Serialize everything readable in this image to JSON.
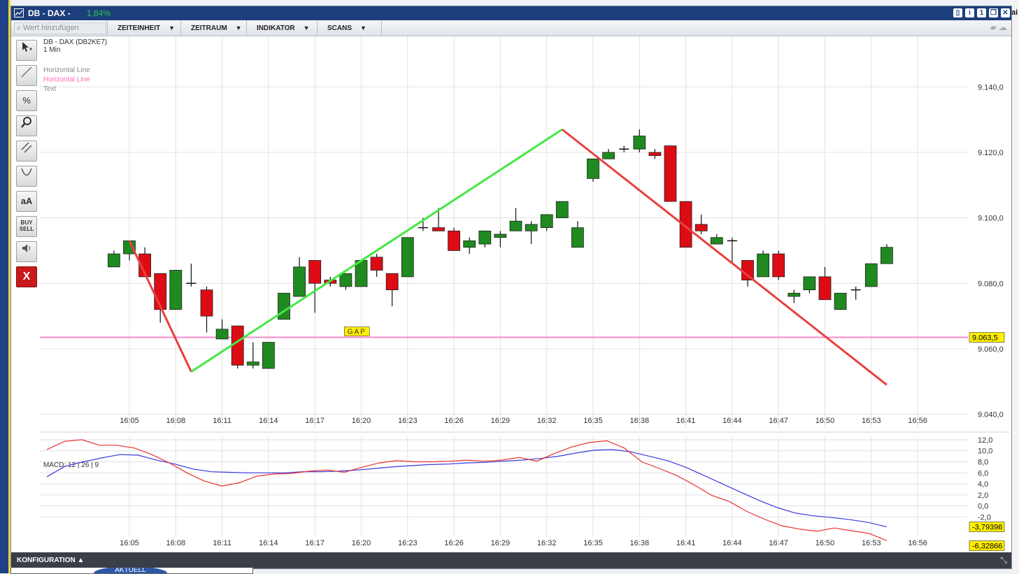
{
  "window": {
    "title": "DB - DAX -",
    "change": "1,84%"
  },
  "outer_right_text": "ai",
  "toolbar": {
    "search_placeholder": "Wert hinzufügen",
    "menus": [
      "ZEITEINHEIT",
      "ZEITRAUM",
      "INDIKATOR",
      "SCANS"
    ]
  },
  "legend": {
    "symbol": "DB - DAX (DB2KE7)",
    "interval": "1 Min",
    "items": [
      {
        "label": "Horizontal Line",
        "color": "#8a8a8a"
      },
      {
        "label": "Horizontal Line",
        "color": "#ff69b4"
      },
      {
        "label": "Text",
        "color": "#8a8a8a"
      }
    ]
  },
  "tools": [
    "cursor-icon",
    "line-icon",
    "percent-icon",
    "zoom-icon",
    "parallel-lines-icon",
    "curve-icon",
    "text-size-icon",
    "buy-sell-icon",
    "speaker-icon",
    "delete-icon"
  ],
  "tool_labels": {
    "text": "aA",
    "buysell_1": "BUY",
    "buysell_2": "SELL",
    "delete": "X",
    "percent": "%"
  },
  "bottom": {
    "label": "KONFIGURATION ▲"
  },
  "below_label": "AKTUELL",
  "chart_data": [
    {
      "type": "candlestick",
      "x": [
        "16:04",
        "16:05",
        "16:06",
        "16:07",
        "16:08",
        "16:09",
        "16:10",
        "16:11",
        "16:12",
        "16:13",
        "16:14",
        "16:15",
        "16:16",
        "16:17",
        "16:18",
        "16:19",
        "16:20",
        "16:21",
        "16:22",
        "16:23",
        "16:24",
        "16:25",
        "16:26",
        "16:27",
        "16:28",
        "16:29",
        "16:30",
        "16:31",
        "16:32",
        "16:33",
        "16:34",
        "16:35",
        "16:36",
        "16:37",
        "16:38",
        "16:39",
        "16:40",
        "16:41",
        "16:42",
        "16:43",
        "16:44",
        "16:45",
        "16:46",
        "16:47",
        "16:48",
        "16:49",
        "16:50",
        "16:51",
        "16:52",
        "16:53",
        "16:54"
      ],
      "series": [
        {
          "o": 9085,
          "h": 9090,
          "l": 9085,
          "c": 9089
        },
        {
          "o": 9089,
          "h": 9093,
          "l": 9087,
          "c": 9093
        },
        {
          "o": 9089,
          "h": 9091,
          "l": 9082,
          "c": 9082
        },
        {
          "o": 9083,
          "h": 9083,
          "l": 9068,
          "c": 9072
        },
        {
          "o": 9072,
          "h": 9084,
          "l": 9072,
          "c": 9084
        },
        {
          "o": 9080,
          "h": 9086,
          "l": 9079,
          "c": 9080
        },
        {
          "o": 9078,
          "h": 9079,
          "l": 9065,
          "c": 9070
        },
        {
          "o": 9063,
          "h": 9069,
          "l": 9063,
          "c": 9066
        },
        {
          "o": 9067,
          "h": 9067,
          "l": 9054,
          "c": 9055
        },
        {
          "o": 9055,
          "h": 9062,
          "l": 9054,
          "c": 9056
        },
        {
          "o": 9054,
          "h": 9062,
          "l": 9054,
          "c": 9062
        },
        {
          "o": 9069,
          "h": 9077,
          "l": 9069,
          "c": 9077
        },
        {
          "o": 9076,
          "h": 9088,
          "l": 9076,
          "c": 9085
        },
        {
          "o": 9087,
          "h": 9087,
          "l": 9071,
          "c": 9080
        },
        {
          "o": 9081,
          "h": 9082,
          "l": 9079,
          "c": 9080
        },
        {
          "o": 9079,
          "h": 9082,
          "l": 9078,
          "c": 9083
        },
        {
          "o": 9079,
          "h": 9087,
          "l": 9079,
          "c": 9087
        },
        {
          "o": 9088,
          "h": 9089,
          "l": 9082,
          "c": 9084
        },
        {
          "o": 9083,
          "h": 9083,
          "l": 9073,
          "c": 9078
        },
        {
          "o": 9082,
          "h": 9094,
          "l": 9082,
          "c": 9094
        },
        {
          "o": 9097,
          "h": 9100,
          "l": 9096,
          "c": 9097
        },
        {
          "o": 9097,
          "h": 9103,
          "l": 9096,
          "c": 9096
        },
        {
          "o": 9096,
          "h": 9097,
          "l": 9090,
          "c": 9090
        },
        {
          "o": 9091,
          "h": 9094,
          "l": 9089,
          "c": 9093
        },
        {
          "o": 9092,
          "h": 9096,
          "l": 9091,
          "c": 9096
        },
        {
          "o": 9094,
          "h": 9096,
          "l": 9091,
          "c": 9095
        },
        {
          "o": 9096,
          "h": 9103,
          "l": 9096,
          "c": 9099
        },
        {
          "o": 9096,
          "h": 9099,
          "l": 9092,
          "c": 9098
        },
        {
          "o": 9097,
          "h": 9101,
          "l": 9096,
          "c": 9101
        },
        {
          "o": 9100,
          "h": 9105,
          "l": 9100,
          "c": 9105
        },
        {
          "o": 9091,
          "h": 9099,
          "l": 9091,
          "c": 9097
        },
        {
          "o": 9112,
          "h": 9118,
          "l": 9111,
          "c": 9118
        },
        {
          "o": 9118,
          "h": 9121,
          "l": 9118,
          "c": 9120
        },
        {
          "o": 9121,
          "h": 9122,
          "l": 9120,
          "c": 9121
        },
        {
          "o": 9121,
          "h": 9127,
          "l": 9120,
          "c": 9125
        },
        {
          "o": 9120,
          "h": 9121,
          "l": 9118,
          "c": 9119
        },
        {
          "o": 9122,
          "h": 9122,
          "l": 9105,
          "c": 9105
        },
        {
          "o": 9105,
          "h": 9105,
          "l": 9091,
          "c": 9091
        },
        {
          "o": 9098,
          "h": 9101,
          "l": 9095,
          "c": 9096
        },
        {
          "o": 9092,
          "h": 9095,
          "l": 9093,
          "c": 9094
        },
        {
          "o": 9093,
          "h": 9094,
          "l": 9086,
          "c": 9093
        },
        {
          "o": 9087,
          "h": 9087,
          "l": 9079,
          "c": 9081
        },
        {
          "o": 9082,
          "h": 9090,
          "l": 9082,
          "c": 9089
        },
        {
          "o": 9089,
          "h": 9090,
          "l": 9081,
          "c": 9082
        },
        {
          "o": 9076,
          "h": 9078,
          "l": 9074,
          "c": 9077
        },
        {
          "o": 9078,
          "h": 9082,
          "l": 9077,
          "c": 9082
        },
        {
          "o": 9082,
          "h": 9085,
          "l": 9075,
          "c": 9075
        },
        {
          "o": 9072,
          "h": 9077,
          "l": 9072,
          "c": 9077
        },
        {
          "o": 9078,
          "h": 9079,
          "l": 9075,
          "c": 9078
        },
        {
          "o": 9079,
          "h": 9086,
          "l": 9079,
          "c": 9086
        },
        {
          "o": 9086,
          "h": 9092,
          "l": 9086,
          "c": 9091
        }
      ],
      "ylim": [
        9035,
        9155
      ],
      "yticks": [
        "9.140,0",
        "9.120,0",
        "9.100,0",
        "9.080,0",
        "9.060,0",
        "9.040,0"
      ],
      "ytick_values": [
        9140,
        9120,
        9100,
        9080,
        9060,
        9040
      ],
      "xtick_labels": [
        "16:05",
        "16:08",
        "16:11",
        "16:14",
        "16:17",
        "16:20",
        "16:23",
        "16:26",
        "16:29",
        "16:32",
        "16:35",
        "16:38",
        "16:41",
        "16:44",
        "16:47",
        "16:50",
        "16:53",
        "16:56"
      ],
      "horizontal_line": {
        "value": 9063.5,
        "label": "9.063,5",
        "color": "#ff88cc"
      },
      "annotation_text": "GAP",
      "trendlines": [
        {
          "color": "#e84040",
          "from": [
            "16:05",
            9093
          ],
          "to": [
            "16:09",
            9053
          ]
        },
        {
          "color": "#44e844",
          "from": [
            "16:09",
            9053
          ],
          "to": [
            "16:33",
            9127
          ]
        },
        {
          "color": "#e84040",
          "from": [
            "16:33",
            9127
          ],
          "to": [
            "16:54",
            9049
          ]
        }
      ],
      "colors": {
        "up": "#1f8a1f",
        "down": "#dd0c14"
      }
    },
    {
      "type": "line",
      "title": "MACD: 12 | 26 | 9",
      "ylim": [
        -5.5,
        12.5
      ],
      "yticks": [
        "12,0",
        "10,0",
        "8,0",
        "6,0",
        "4,0",
        "2,0",
        "0,0",
        "-2,0"
      ],
      "ytick_values": [
        12,
        10,
        8,
        6,
        4,
        2,
        0,
        -2
      ],
      "xtick_labels": [
        "16:05",
        "16:08",
        "16:11",
        "16:14",
        "16:17",
        "16:20",
        "16:23",
        "16:26",
        "16:29",
        "16:32",
        "16:35",
        "16:38",
        "16:41",
        "16:44",
        "16:47",
        "16:50",
        "16:53",
        "16:56"
      ],
      "series": [
        {
          "color": "#3a3ae0",
          "last_label": "-3,79396",
          "values": [
            5.3,
            7.2,
            8.0,
            8.7,
            9.3,
            9.2,
            8.3,
            7.6,
            6.7,
            6.2,
            6.1,
            6.0,
            6.0,
            6.0,
            6.2,
            6.2,
            6.3,
            6.5,
            6.8,
            7.1,
            7.3,
            7.5,
            7.6,
            7.8,
            7.9,
            8.1,
            8.3,
            8.6,
            9.0,
            9.6,
            10.1,
            10.2,
            9.8,
            9.0,
            8.2,
            7.0,
            5.5,
            4.0,
            2.5,
            1.0,
            -0.3,
            -1.3,
            -1.8,
            -2.1,
            -2.5,
            -3.0,
            -3.8
          ],
          "last": -3.79396
        },
        {
          "color": "#e83030",
          "last_label": "-6,32866",
          "values": [
            10.2,
            11.7,
            12.0,
            11.0,
            11.0,
            10.5,
            9.3,
            7.8,
            6.0,
            4.5,
            3.6,
            4.2,
            5.4,
            5.8,
            5.9,
            6.3,
            6.5,
            6.1,
            7.0,
            7.8,
            8.2,
            8.0,
            8.0,
            8.1,
            8.3,
            8.1,
            8.3,
            8.8,
            8.1,
            9.5,
            10.7,
            11.5,
            11.8,
            10.5,
            8.0,
            6.8,
            5.5,
            3.8,
            1.9,
            0.8,
            -1.0,
            -2.4,
            -3.6,
            -4.2,
            -4.6,
            -4.0,
            -4.5,
            -5.0,
            -6.3
          ],
          "last": -6.32866
        }
      ]
    }
  ]
}
